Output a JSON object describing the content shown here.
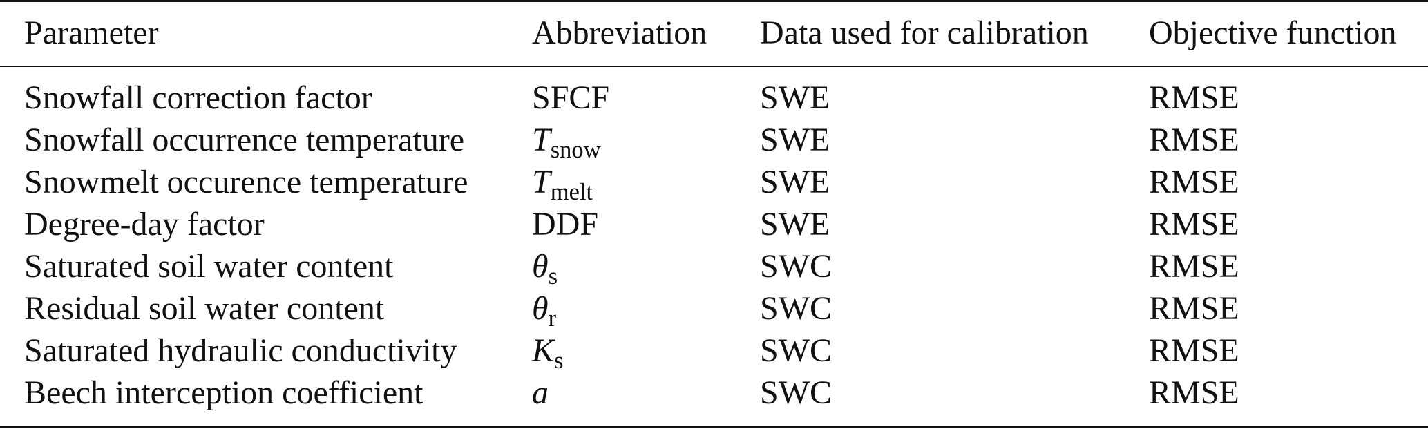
{
  "table": {
    "headers": [
      "Parameter",
      "Abbreviation",
      "Data used for calibration",
      "Objective function"
    ],
    "rows": [
      {
        "parameter": "Snowfall correction factor",
        "abbr_main": "SFCF",
        "abbr_italic": false,
        "abbr_sub": "",
        "data": "SWE",
        "objective": "RMSE"
      },
      {
        "parameter": "Snowfall occurrence temperature",
        "abbr_main": "T",
        "abbr_italic": true,
        "abbr_sub": "snow",
        "data": "SWE",
        "objective": "RMSE"
      },
      {
        "parameter": "Snowmelt occurence temperature",
        "abbr_main": "T",
        "abbr_italic": true,
        "abbr_sub": "melt",
        "data": "SWE",
        "objective": "RMSE"
      },
      {
        "parameter": "Degree-day factor",
        "abbr_main": "DDF",
        "abbr_italic": false,
        "abbr_sub": "",
        "data": "SWE",
        "objective": "RMSE"
      },
      {
        "parameter": "Saturated soil water content",
        "abbr_main": "θ",
        "abbr_italic": true,
        "abbr_sub": "s",
        "data": "SWC",
        "objective": "RMSE"
      },
      {
        "parameter": "Residual soil water content",
        "abbr_main": "θ",
        "abbr_italic": true,
        "abbr_sub": "r",
        "data": "SWC",
        "objective": "RMSE"
      },
      {
        "parameter": "Saturated hydraulic conductivity",
        "abbr_main": "K",
        "abbr_italic": true,
        "abbr_sub": "s",
        "data": "SWC",
        "objective": "RMSE"
      },
      {
        "parameter": "Beech interception coefficient",
        "abbr_main": "a",
        "abbr_italic": true,
        "abbr_sub": "",
        "data": "SWC",
        "objective": "RMSE"
      }
    ]
  }
}
